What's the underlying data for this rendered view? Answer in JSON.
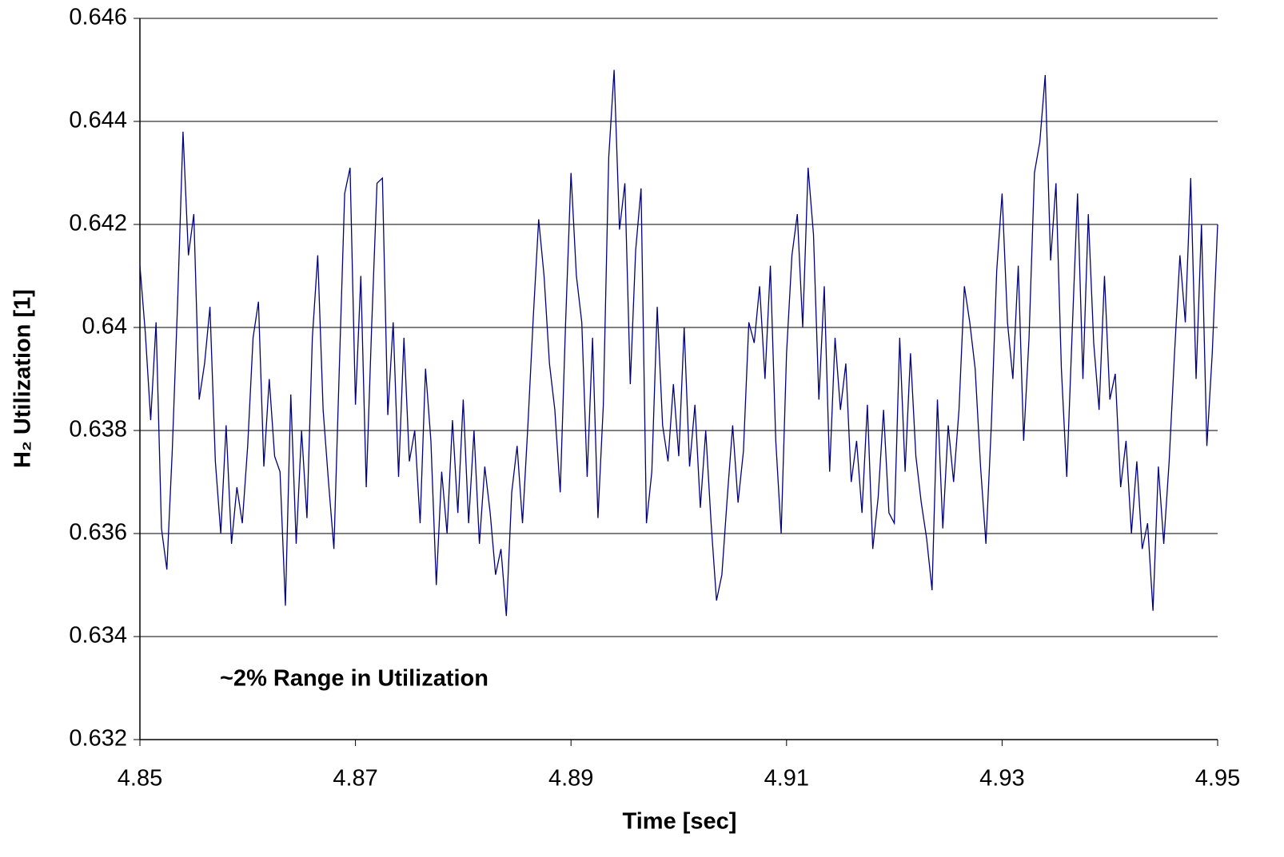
{
  "chart_data": {
    "type": "line",
    "xlabel": "Time [sec]",
    "ylabel": "H₂ Utilization [1]",
    "annotation": "~2% Range in Utilization",
    "xlim": [
      4.85,
      4.95
    ],
    "xticks": [
      4.85,
      4.87,
      4.89,
      4.91,
      4.93,
      4.95
    ],
    "ylim": [
      0.632,
      0.646
    ],
    "yticks": [
      0.632,
      0.634,
      0.636,
      0.638,
      0.64,
      0.642,
      0.644,
      0.646
    ],
    "grid": true,
    "x": [
      4.85,
      4.8505,
      4.851,
      4.8515,
      4.852,
      4.8525,
      4.853,
      4.8535,
      4.854,
      4.8545,
      4.855,
      4.8555,
      4.856,
      4.8565,
      4.857,
      4.8575,
      4.858,
      4.8585,
      4.859,
      4.8595,
      4.86,
      4.8605,
      4.861,
      4.8615,
      4.862,
      4.8625,
      4.863,
      4.8635,
      4.864,
      4.8645,
      4.865,
      4.8655,
      4.866,
      4.8665,
      4.867,
      4.8675,
      4.868,
      4.8685,
      4.869,
      4.8695,
      4.87,
      4.8705,
      4.871,
      4.8715,
      4.872,
      4.8725,
      4.873,
      4.8735,
      4.874,
      4.8745,
      4.875,
      4.8755,
      4.876,
      4.8765,
      4.877,
      4.8775,
      4.878,
      4.8785,
      4.879,
      4.8795,
      4.88,
      4.8805,
      4.881,
      4.8815,
      4.882,
      4.8825,
      4.883,
      4.8835,
      4.884,
      4.8845,
      4.885,
      4.8855,
      4.886,
      4.8865,
      4.887,
      4.8875,
      4.888,
      4.8885,
      4.889,
      4.8895,
      4.89,
      4.8905,
      4.891,
      4.8915,
      4.892,
      4.8925,
      4.893,
      4.8935,
      4.894,
      4.8945,
      4.895,
      4.8955,
      4.896,
      4.8965,
      4.897,
      4.8975,
      4.898,
      4.8985,
      4.899,
      4.8995,
      4.9,
      4.9005,
      4.901,
      4.9015,
      4.902,
      4.9025,
      4.903,
      4.9035,
      4.904,
      4.9045,
      4.905,
      4.9055,
      4.906,
      4.9065,
      4.907,
      4.9075,
      4.908,
      4.9085,
      4.909,
      4.9095,
      4.91,
      4.9105,
      4.911,
      4.9115,
      4.912,
      4.9125,
      4.913,
      4.9135,
      4.914,
      4.9145,
      4.915,
      4.9155,
      4.916,
      4.9165,
      4.917,
      4.9175,
      4.918,
      4.9185,
      4.919,
      4.9195,
      4.92,
      4.9205,
      4.921,
      4.9215,
      4.922,
      4.9225,
      4.923,
      4.9235,
      4.924,
      4.9245,
      4.925,
      4.9255,
      4.926,
      4.9265,
      4.927,
      4.9275,
      4.928,
      4.9285,
      4.929,
      4.9295,
      4.93,
      4.9305,
      4.931,
      4.9315,
      4.932,
      4.9325,
      4.933,
      4.9335,
      4.934,
      4.9345,
      4.935,
      4.9355,
      4.936,
      4.9365,
      4.937,
      4.9375,
      4.938,
      4.9385,
      4.939,
      4.9395,
      4.94,
      4.9405,
      4.941,
      4.9415,
      4.942,
      4.9425,
      4.943,
      4.9435,
      4.944,
      4.9445,
      4.945,
      4.9455,
      4.946,
      4.9465,
      4.947,
      4.9475,
      4.948,
      4.9485,
      4.949,
      4.9495,
      4.95
    ],
    "series": [
      {
        "color": "#000080",
        "values": [
          0.6412,
          0.6399,
          0.6382,
          0.6401,
          0.6361,
          0.6353,
          0.6376,
          0.6405,
          0.6438,
          0.6414,
          0.6422,
          0.6386,
          0.6393,
          0.6404,
          0.6374,
          0.636,
          0.6381,
          0.6358,
          0.6369,
          0.6362,
          0.6377,
          0.6398,
          0.6405,
          0.6373,
          0.639,
          0.6375,
          0.6372,
          0.6346,
          0.6387,
          0.6358,
          0.638,
          0.6363,
          0.6398,
          0.6414,
          0.6384,
          0.637,
          0.6357,
          0.6392,
          0.6426,
          0.6431,
          0.6385,
          0.641,
          0.6369,
          0.64,
          0.6428,
          0.6429,
          0.6383,
          0.6401,
          0.6371,
          0.6398,
          0.6374,
          0.638,
          0.6362,
          0.6392,
          0.6378,
          0.635,
          0.6372,
          0.636,
          0.6382,
          0.6364,
          0.6386,
          0.6362,
          0.638,
          0.6358,
          0.6373,
          0.6364,
          0.6352,
          0.6357,
          0.6344,
          0.6368,
          0.6377,
          0.6362,
          0.6381,
          0.6402,
          0.6421,
          0.641,
          0.6393,
          0.6384,
          0.6368,
          0.6401,
          0.643,
          0.641,
          0.6401,
          0.6371,
          0.6398,
          0.6363,
          0.6385,
          0.6433,
          0.645,
          0.6419,
          0.6428,
          0.6389,
          0.6415,
          0.6427,
          0.6362,
          0.6372,
          0.6404,
          0.6381,
          0.6374,
          0.6389,
          0.6375,
          0.64,
          0.6373,
          0.6385,
          0.6365,
          0.638,
          0.6362,
          0.6347,
          0.6352,
          0.6367,
          0.6381,
          0.6366,
          0.6376,
          0.6401,
          0.6397,
          0.6408,
          0.639,
          0.6412,
          0.6378,
          0.636,
          0.6395,
          0.6414,
          0.6422,
          0.64,
          0.6431,
          0.6418,
          0.6386,
          0.6408,
          0.6372,
          0.6398,
          0.6384,
          0.6393,
          0.637,
          0.6378,
          0.6364,
          0.6385,
          0.6357,
          0.6367,
          0.6384,
          0.6364,
          0.6362,
          0.6398,
          0.6372,
          0.6395,
          0.6375,
          0.6366,
          0.6359,
          0.6349,
          0.6386,
          0.6361,
          0.6381,
          0.637,
          0.6384,
          0.6408,
          0.6401,
          0.6392,
          0.6373,
          0.6358,
          0.6381,
          0.6411,
          0.6426,
          0.6401,
          0.639,
          0.6412,
          0.6378,
          0.6398,
          0.643,
          0.6436,
          0.6449,
          0.6413,
          0.6428,
          0.6392,
          0.6371,
          0.6399,
          0.6426,
          0.639,
          0.6422,
          0.6397,
          0.6384,
          0.641,
          0.6386,
          0.6391,
          0.6369,
          0.6378,
          0.636,
          0.6374,
          0.6357,
          0.6362,
          0.6345,
          0.6373,
          0.6358,
          0.6374,
          0.6395,
          0.6414,
          0.6401,
          0.6429,
          0.639,
          0.642,
          0.6377,
          0.6395,
          0.642
        ]
      }
    ]
  }
}
